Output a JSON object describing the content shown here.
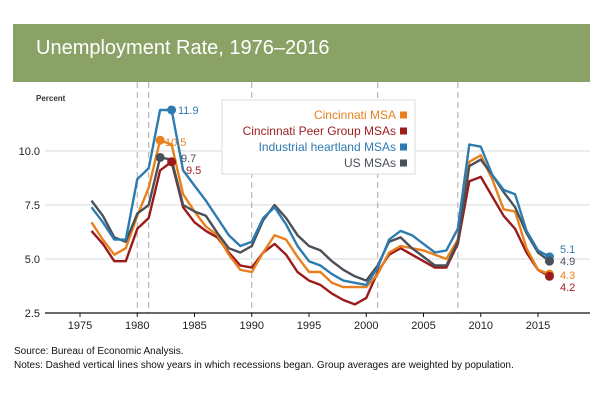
{
  "chart_data": {
    "type": "line",
    "title": "Unemployment Rate, 1976–2016",
    "ylabel": "Percent",
    "xlabel": "",
    "xlim": [
      1973,
      2019
    ],
    "ylim": [
      2.5,
      12.5
    ],
    "x_ticks": [
      "1975",
      "1980",
      "1985",
      "1990",
      "1995",
      "2000",
      "2005",
      "2010",
      "2015"
    ],
    "y_ticks": [
      "2.5",
      "5.0",
      "7.5",
      "10.0"
    ],
    "grid": "horizontal",
    "legend": "top-center",
    "recession_years": [
      1980,
      1981,
      1990,
      2001,
      2008
    ],
    "x": [
      1976,
      1977,
      1978,
      1979,
      1980,
      1981,
      1982,
      1983,
      1984,
      1985,
      1986,
      1987,
      1988,
      1989,
      1990,
      1991,
      1992,
      1993,
      1994,
      1995,
      1996,
      1997,
      1998,
      1999,
      2000,
      2001,
      2002,
      2003,
      2004,
      2005,
      2006,
      2007,
      2008,
      2009,
      2010,
      2011,
      2012,
      2013,
      2014,
      2015,
      2016
    ],
    "series": [
      {
        "name": "Cincinnati MSA",
        "color": "#e8801e",
        "values": [
          6.7,
          5.9,
          5.2,
          5.5,
          7.0,
          8.3,
          10.5,
          10.3,
          8.0,
          7.2,
          6.5,
          6.1,
          5.2,
          4.5,
          4.4,
          5.3,
          6.1,
          5.9,
          5.1,
          4.4,
          4.4,
          3.9,
          3.7,
          3.7,
          3.7,
          4.3,
          5.3,
          5.6,
          5.5,
          5.4,
          5.2,
          5.0,
          5.9,
          9.5,
          9.8,
          8.7,
          7.3,
          7.2,
          5.5,
          4.5,
          4.3
        ]
      },
      {
        "name": "Cincinnati Peer Group MSAs",
        "color": "#9b1b1b",
        "values": [
          6.3,
          5.7,
          4.9,
          4.9,
          6.4,
          6.9,
          9.1,
          9.5,
          7.4,
          6.7,
          6.3,
          6.0,
          5.3,
          4.7,
          4.6,
          5.3,
          5.7,
          5.2,
          4.4,
          4.0,
          3.8,
          3.4,
          3.1,
          2.9,
          3.2,
          4.4,
          5.2,
          5.5,
          5.2,
          4.9,
          4.6,
          4.6,
          5.7,
          8.6,
          8.8,
          7.9,
          7.0,
          6.4,
          5.3,
          4.5,
          4.2
        ]
      },
      {
        "name": "Industrial heartland MSAs",
        "color": "#2e7bb0",
        "values": [
          7.4,
          6.7,
          5.9,
          5.9,
          8.7,
          9.2,
          11.9,
          11.9,
          9.1,
          8.4,
          7.7,
          6.9,
          6.1,
          5.6,
          5.8,
          6.9,
          7.4,
          6.6,
          5.6,
          4.9,
          4.7,
          4.3,
          4.0,
          3.9,
          3.8,
          4.6,
          5.9,
          6.3,
          6.1,
          5.7,
          5.3,
          5.4,
          6.4,
          10.3,
          10.2,
          8.9,
          8.2,
          8.0,
          6.3,
          5.4,
          5.1
        ]
      },
      {
        "name": "US MSAs",
        "color": "#4a5058",
        "values": [
          7.7,
          7.0,
          6.0,
          5.8,
          7.1,
          7.5,
          9.7,
          9.6,
          7.5,
          7.2,
          7.0,
          6.2,
          5.5,
          5.3,
          5.6,
          6.8,
          7.5,
          6.9,
          6.1,
          5.6,
          5.4,
          4.9,
          4.5,
          4.2,
          4.0,
          4.7,
          5.8,
          6.0,
          5.5,
          5.1,
          4.7,
          4.7,
          5.8,
          9.3,
          9.6,
          8.9,
          8.1,
          7.4,
          6.2,
          5.3,
          4.9
        ]
      }
    ],
    "annotations": [
      {
        "series": "Industrial heartland MSAs",
        "x": 1983,
        "label": "11.9"
      },
      {
        "series": "Cincinnati MSA",
        "x": 1982,
        "label": "10.5"
      },
      {
        "series": "US MSAs",
        "x": 1982,
        "label": "9.7"
      },
      {
        "series": "Cincinnati Peer Group MSAs",
        "x": 1983,
        "label": "9.5"
      },
      {
        "series": "Industrial heartland MSAs",
        "x": 2016,
        "label": "5.1"
      },
      {
        "series": "US MSAs",
        "x": 2016,
        "label": "4.9"
      },
      {
        "series": "Cincinnati MSA",
        "x": 2016,
        "label": "4.3"
      },
      {
        "series": "Cincinnati Peer Group MSAs",
        "x": 2016,
        "label": "4.2"
      }
    ]
  },
  "footer": {
    "source": "Source: Bureau of Economic Analysis.",
    "notes": "Notes: Dashed vertical lines show years in which recessions began. Group averages are weighted by population."
  }
}
